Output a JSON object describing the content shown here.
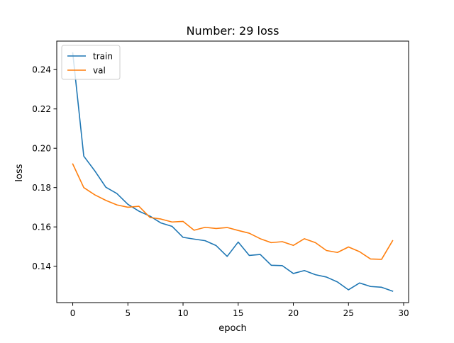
{
  "chart_data": {
    "type": "line",
    "title": "Number: 29 loss",
    "xlabel": "epoch",
    "ylabel": "loss",
    "xlim": [
      -1.45,
      30.45
    ],
    "ylim": [
      0.1215,
      0.2545
    ],
    "xticks": [
      0,
      5,
      10,
      15,
      20,
      25,
      30
    ],
    "yticks": [
      0.14,
      0.16,
      0.18,
      0.2,
      0.22,
      0.24
    ],
    "grid": false,
    "legend_position": "upper-left",
    "x": [
      0,
      1,
      2,
      3,
      4,
      5,
      6,
      7,
      8,
      9,
      10,
      11,
      12,
      13,
      14,
      15,
      16,
      17,
      18,
      19,
      20,
      21,
      22,
      23,
      24,
      25,
      26,
      27,
      28,
      29
    ],
    "series": [
      {
        "name": "train",
        "color": "#1f77b4",
        "values": [
          0.2485,
          0.196,
          0.1885,
          0.1802,
          0.177,
          0.1715,
          0.168,
          0.1655,
          0.162,
          0.1603,
          0.1547,
          0.1538,
          0.153,
          0.1505,
          0.145,
          0.1523,
          0.1455,
          0.146,
          0.1405,
          0.1403,
          0.1363,
          0.1378,
          0.1357,
          0.1345,
          0.132,
          0.128,
          0.1315,
          0.1297,
          0.1293,
          0.1273
        ]
      },
      {
        "name": "val",
        "color": "#ff7f0e",
        "values": [
          0.192,
          0.18,
          0.1763,
          0.1735,
          0.1712,
          0.17,
          0.1705,
          0.1648,
          0.164,
          0.1625,
          0.1628,
          0.1583,
          0.1598,
          0.1592,
          0.1597,
          0.1582,
          0.1568,
          0.154,
          0.152,
          0.1525,
          0.1506,
          0.154,
          0.152,
          0.148,
          0.147,
          0.1498,
          0.1474,
          0.1437,
          0.1435,
          0.153
        ]
      }
    ]
  }
}
